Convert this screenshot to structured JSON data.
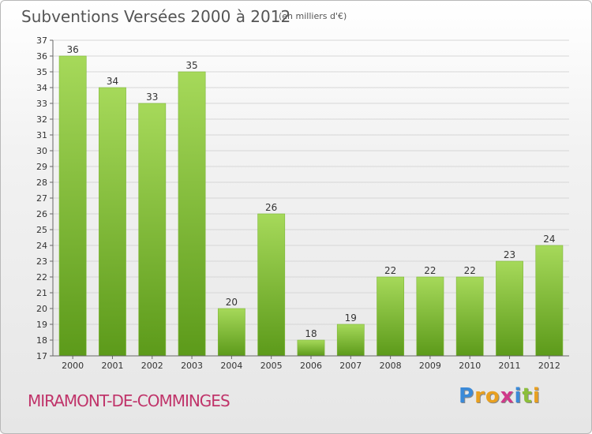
{
  "header": {
    "title": "Subventions Versées 2000 à 2012",
    "unit": "(en milliers d'€)"
  },
  "footer": {
    "commune": "MIRAMONT-DE-COMMINGES",
    "logo_letters": [
      "P",
      "r",
      "o",
      "x",
      "i",
      "t",
      "i"
    ],
    "logo_colors": [
      "#3b8ad8",
      "#e8a020",
      "#e8a020",
      "#d03a8a",
      "#3b8ad8",
      "#8cbf3a",
      "#e8a020"
    ]
  },
  "chart_data": {
    "type": "bar",
    "categories": [
      "2000",
      "2001",
      "2002",
      "2003",
      "2004",
      "2005",
      "2006",
      "2007",
      "2008",
      "2009",
      "2010",
      "2011",
      "2012"
    ],
    "values": [
      36,
      34,
      33,
      35,
      20,
      26,
      18,
      19,
      22,
      22,
      22,
      23,
      24
    ],
    "ylim": [
      17,
      37
    ],
    "yticks": [
      17,
      18,
      19,
      20,
      21,
      22,
      23,
      24,
      25,
      26,
      27,
      28,
      29,
      30,
      31,
      32,
      33,
      34,
      35,
      36,
      37
    ],
    "grid": true,
    "bar_color_top": "#a6d95a",
    "bar_color_bottom": "#5c9a1a"
  }
}
